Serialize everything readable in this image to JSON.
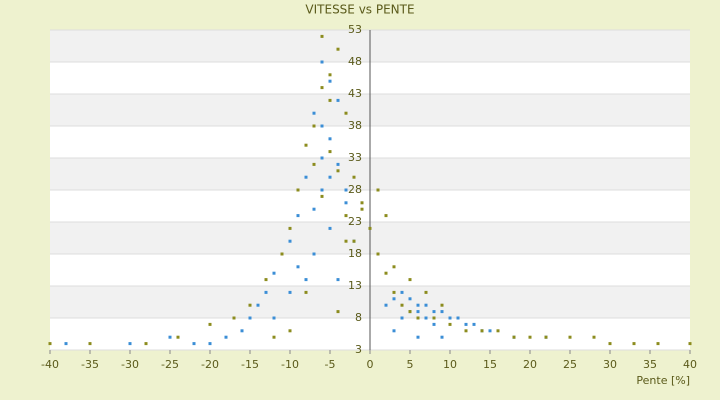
{
  "chart_data": {
    "type": "scatter",
    "title": "VITESSE vs PENTE",
    "x_label": "Pente [%]",
    "xlim": [
      -40,
      40
    ],
    "xticks": [
      -40,
      -35,
      -30,
      -25,
      -20,
      -15,
      -10,
      -5,
      0,
      5,
      10,
      15,
      20,
      25,
      30,
      35,
      40
    ],
    "ylim": [
      3,
      53
    ],
    "yticks": [
      3,
      8,
      13,
      18,
      23,
      28,
      33,
      38,
      43,
      48,
      53
    ],
    "grid": true,
    "series": [
      {
        "color": "#3b8ed6",
        "x": [
          -5,
          -6,
          -7,
          -4,
          -5,
          -6,
          -8,
          -3,
          -9,
          -10,
          -11,
          -12,
          -13,
          -14,
          -15,
          -7,
          -6,
          -5,
          -4,
          -3,
          -2,
          -8,
          -9,
          -10,
          -6,
          -5,
          -7,
          -4,
          -12,
          -16,
          -18,
          -20,
          -22,
          -25,
          -30,
          -38,
          2,
          3,
          4,
          5,
          6,
          7,
          8,
          9,
          10,
          11,
          12,
          13,
          14,
          4,
          5,
          6,
          7,
          8,
          3,
          6,
          9,
          15,
          18,
          22
        ],
        "values": [
          45,
          48,
          40,
          42,
          36,
          33,
          30,
          28,
          24,
          20,
          18,
          15,
          12,
          10,
          8,
          25,
          28,
          30,
          32,
          26,
          20,
          14,
          16,
          12,
          38,
          22,
          18,
          14,
          8,
          6,
          5,
          4,
          4,
          5,
          4,
          4,
          10,
          11,
          12,
          11,
          10,
          10,
          9,
          9,
          8,
          8,
          7,
          7,
          6,
          8,
          9,
          9,
          8,
          7,
          6,
          5,
          5,
          6,
          5,
          5
        ]
      },
      {
        "color": "#8c8c1e",
        "x": [
          -4,
          -5,
          -6,
          -3,
          -7,
          -2,
          -8,
          -1,
          -9,
          -10,
          -5,
          -4,
          -6,
          -3,
          -11,
          -13,
          -15,
          -17,
          -20,
          -24,
          -28,
          -35,
          -40,
          -2,
          -1,
          0,
          1,
          2,
          3,
          4,
          5,
          6,
          8,
          10,
          12,
          14,
          16,
          18,
          20,
          22,
          25,
          28,
          30,
          33,
          36,
          40,
          3,
          5,
          7,
          9,
          -6,
          -5,
          -7,
          -3,
          -8,
          -4,
          -10,
          -12,
          1,
          2
        ],
        "values": [
          50,
          46,
          44,
          40,
          38,
          30,
          35,
          26,
          28,
          22,
          34,
          31,
          27,
          24,
          18,
          14,
          10,
          8,
          7,
          5,
          4,
          4,
          4,
          20,
          25,
          22,
          18,
          15,
          12,
          10,
          9,
          8,
          8,
          7,
          6,
          6,
          6,
          5,
          5,
          5,
          5,
          5,
          4,
          4,
          4,
          4,
          16,
          14,
          12,
          10,
          52,
          42,
          32,
          20,
          12,
          9,
          6,
          5,
          28,
          24
        ]
      }
    ]
  }
}
